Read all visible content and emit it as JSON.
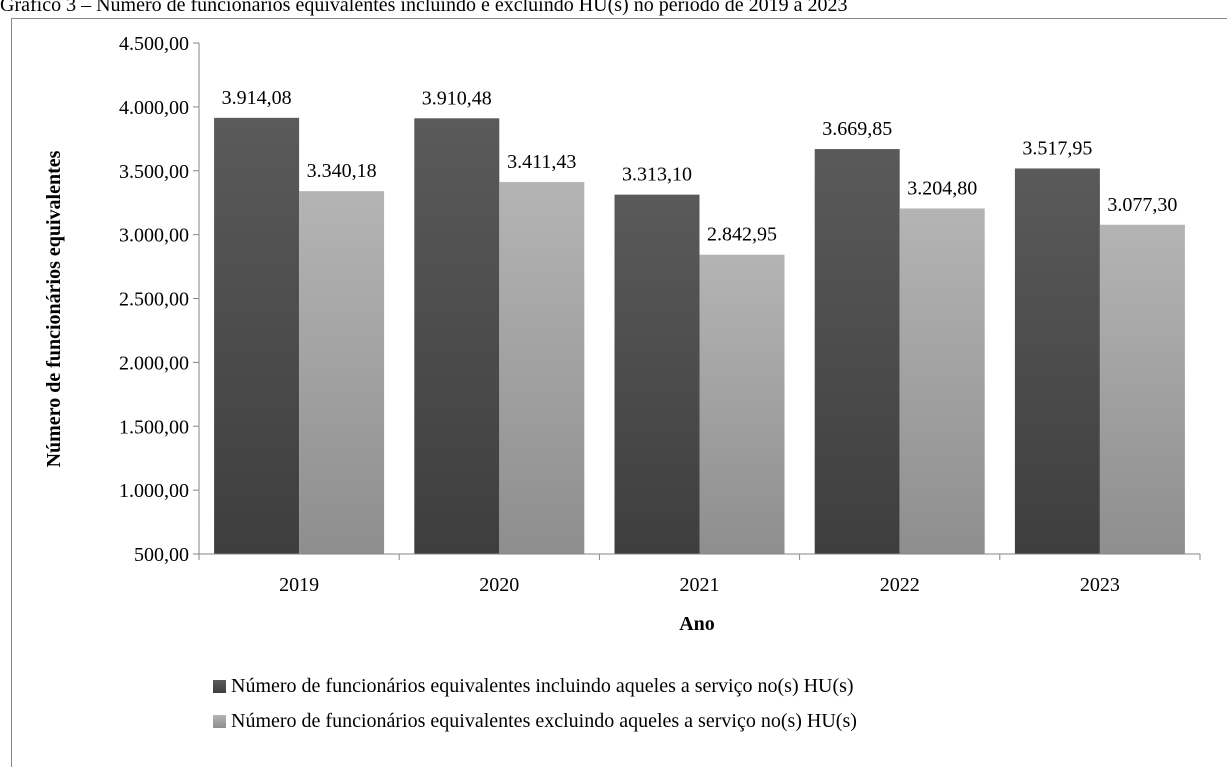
{
  "caption": "Gráfico 3 – Número de funcionários equivalentes incluindo e excluindo HU(s) no período de 2019 a 2023",
  "chart_data": {
    "type": "bar",
    "categories": [
      "2019",
      "2020",
      "2021",
      "2022",
      "2023"
    ],
    "series": [
      {
        "name": "Número de funcionários equivalentes incluindo aqueles a serviço no(s) HU(s)",
        "values": [
          3914.08,
          3910.48,
          3313.1,
          3669.85,
          3517.95
        ],
        "labels": [
          "3.914,08",
          "3.910,48",
          "3.313,10",
          "3.669,85",
          "3.517,95"
        ],
        "color_top": "#5a5a5a",
        "color_bottom": "#3e3e3e"
      },
      {
        "name": "Número de funcionários equivalentes excluindo aqueles a serviço no(s) HU(s)",
        "values": [
          3340.18,
          3411.43,
          2842.95,
          3204.8,
          3077.3
        ],
        "labels": [
          "3.340,18",
          "3.411,43",
          "2.842,95",
          "3.204,80",
          "3.077,30"
        ],
        "color_top": "#b4b4b4",
        "color_bottom": "#8e8e8e"
      }
    ],
    "xlabel": "Ano",
    "ylabel": "Número de funcionários equivalentes",
    "ylim": [
      500,
      4500
    ],
    "yticks": [
      500,
      1000,
      1500,
      2000,
      2500,
      3000,
      3500,
      4000,
      4500
    ],
    "ytick_labels": [
      "500,00",
      "1.000,00",
      "1.500,00",
      "2.000,00",
      "2.500,00",
      "3.000,00",
      "3.500,00",
      "4.000,00",
      "4.500,00"
    ],
    "grid": false,
    "legend_position": "bottom"
  }
}
